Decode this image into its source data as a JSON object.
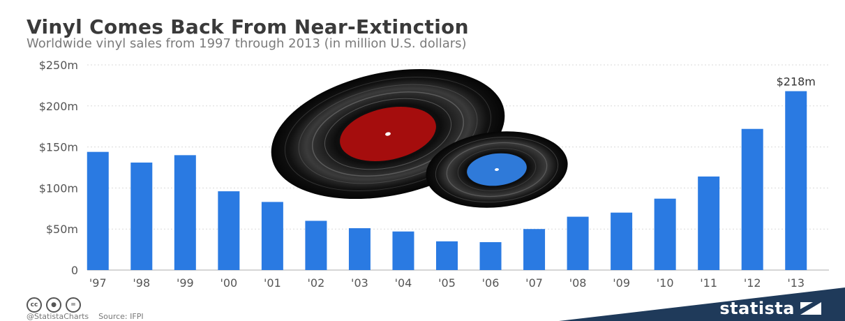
{
  "header": {
    "title": "Vinyl Comes Back From Near-Extinction",
    "subtitle": "Worldwide vinyl sales from 1997 through 2013 (in million U.S. dollars)"
  },
  "chart_data": {
    "type": "bar",
    "categories": [
      "'97",
      "'98",
      "'99",
      "'00",
      "'01",
      "'02",
      "'03",
      "'04",
      "'05",
      "'06",
      "'07",
      "'08",
      "'09",
      "'10",
      "'11",
      "'12",
      "'13"
    ],
    "values": [
      144,
      131,
      140,
      96,
      83,
      60,
      51,
      47,
      35,
      34,
      50,
      65,
      70,
      87,
      114,
      172,
      218
    ],
    "y_ticks": [
      0,
      50,
      100,
      150,
      200,
      250
    ],
    "y_tick_labels": [
      "0",
      "$50m",
      "$100m",
      "$150m",
      "$200m",
      "$250m"
    ],
    "ylim": [
      0,
      250
    ],
    "annotations": [
      {
        "category": "'13",
        "text": "$218m"
      }
    ],
    "title": "Vinyl Comes Back From Near-Extinction",
    "xlabel": "",
    "ylabel": "",
    "grid": "horizontal dotted",
    "bar_color": "#2a7ae2"
  },
  "illustration": {
    "name": "vinyl-records",
    "large_label_color": "#a50d0d",
    "small_label_color": "#2f7ad9"
  },
  "footer": {
    "license_icons": [
      "cc-icon",
      "by-icon",
      "nd-icon"
    ],
    "handle": "@StatistaCharts",
    "source": "Source: IFPI",
    "brand": "statista",
    "brand_color": "#1f3a5a"
  }
}
